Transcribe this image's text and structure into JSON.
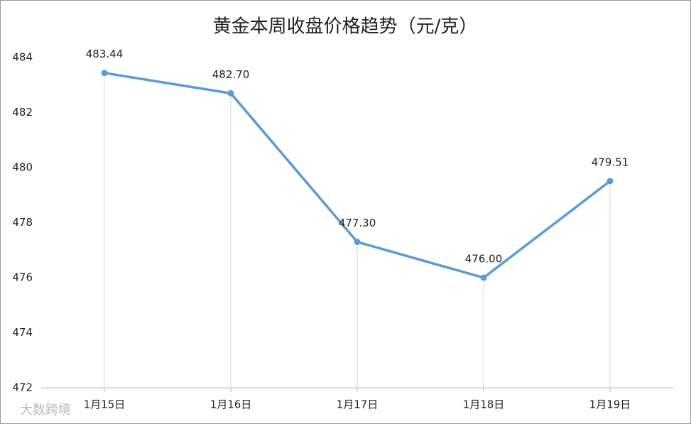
{
  "chart_data": {
    "type": "line",
    "title": "黄金本周收盘价格趋势（元/克）",
    "categories": [
      "1月15日",
      "1月16日",
      "1月17日",
      "1月18日",
      "1月19日"
    ],
    "values": [
      483.44,
      482.7,
      477.3,
      476.0,
      479.51
    ],
    "value_labels": [
      "483.44",
      "482.70",
      "477.30",
      "476.00",
      "479.51"
    ],
    "color": "#5b9bd5",
    "ylim": [
      472,
      484
    ],
    "yticks": [
      472,
      474,
      476,
      478,
      480,
      482,
      484
    ],
    "drop_lines": true
  },
  "watermark": "大数跨境"
}
